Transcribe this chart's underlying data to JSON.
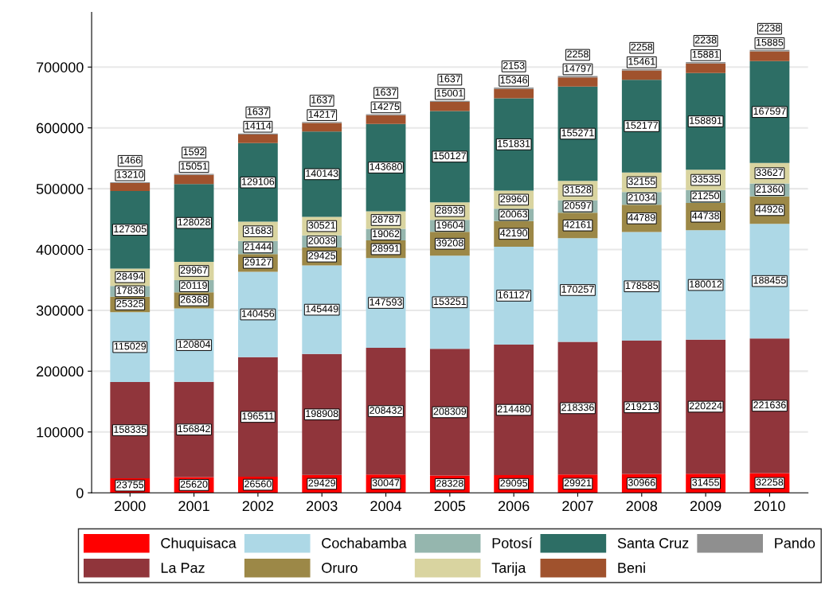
{
  "chart_data": {
    "type": "bar",
    "stacked": true,
    "data_labels": true,
    "grid": "y",
    "legend": "bottom",
    "categories": [
      "2000",
      "2001",
      "2002",
      "2003",
      "2004",
      "2005",
      "2006",
      "2007",
      "2008",
      "2009",
      "2010"
    ],
    "ylim": [
      0,
      790000
    ],
    "yticks": [
      0,
      100000,
      200000,
      300000,
      400000,
      500000,
      600000,
      700000
    ],
    "series": [
      {
        "name": "Chuquisaca",
        "color": "#ff0000",
        "values": [
          23755,
          25620,
          26560,
          29429,
          30047,
          28328,
          29095,
          29921,
          30966,
          31455,
          32258
        ]
      },
      {
        "name": "La Paz",
        "color": "#90353b",
        "values": [
          158335,
          156842,
          196511,
          198908,
          208432,
          208309,
          214480,
          218336,
          219213,
          220224,
          221636
        ]
      },
      {
        "name": "Cochabamba",
        "color": "#add8e6",
        "values": [
          115029,
          120804,
          140456,
          145449,
          147593,
          153251,
          161127,
          170257,
          178585,
          180012,
          188455
        ]
      },
      {
        "name": "Oruro",
        "color": "#9c8847",
        "values": [
          25325,
          26368,
          29127,
          29425,
          28991,
          39208,
          42190,
          42161,
          44789,
          44738,
          44926
        ]
      },
      {
        "name": "Potosí",
        "color": "#95b6ae",
        "values": [
          17836,
          20119,
          21444,
          20039,
          19062,
          19604,
          20063,
          20597,
          21034,
          21250,
          21360
        ]
      },
      {
        "name": "Tarija",
        "color": "#d9d4a0",
        "values": [
          28494,
          29967,
          31683,
          30521,
          28787,
          28939,
          29960,
          31528,
          32155,
          33535,
          33627
        ]
      },
      {
        "name": "Santa Cruz",
        "color": "#2d6e65",
        "values": [
          127305,
          128028,
          129106,
          140143,
          143680,
          150127,
          151831,
          155271,
          152177,
          158891,
          167597
        ]
      },
      {
        "name": "Beni",
        "color": "#a0522d",
        "values": [
          13210,
          15051,
          14114,
          14217,
          14275,
          15001,
          15346,
          14797,
          15461,
          15881,
          15885
        ]
      },
      {
        "name": "Pando",
        "color": "#8f8f8f",
        "values": [
          1466,
          1592,
          1637,
          1637,
          1637,
          1637,
          2153,
          2258,
          2258,
          2238,
          2238
        ]
      }
    ]
  }
}
